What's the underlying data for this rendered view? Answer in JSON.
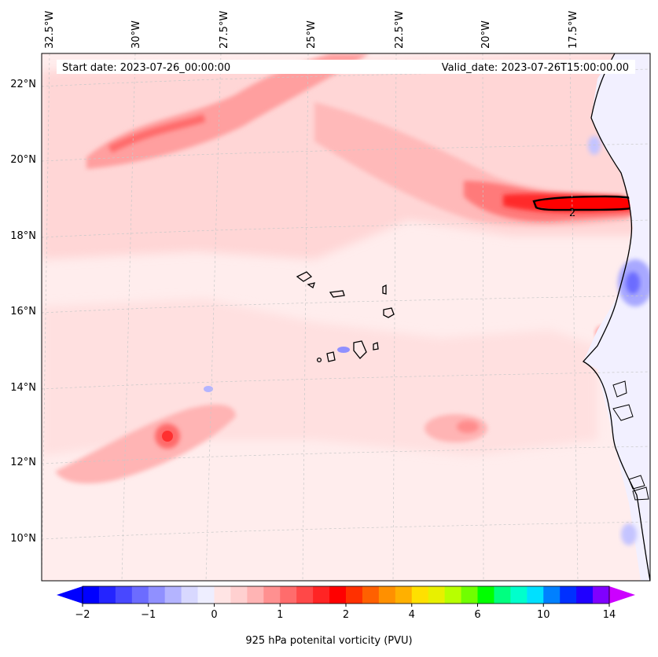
{
  "header": {
    "start_date": "Start date: 2023-07-26_00:00:00",
    "valid_date": "Valid_date: 2023-07-26T15:00:00.00"
  },
  "axes": {
    "lon_labels": [
      "32.5°W",
      "30°W",
      "27.5°W",
      "25°W",
      "22.5°W",
      "20°W",
      "17.5°W"
    ],
    "lat_labels": [
      "22°N",
      "20°N",
      "18°N",
      "16°N",
      "14°N",
      "12°N",
      "10°N"
    ]
  },
  "contour_label": "2",
  "colorbar": {
    "title": "925 hPa potenital vorticity (PVU)",
    "tick_labels": [
      "−2",
      "−1",
      "0",
      "1",
      "2",
      "4",
      "6",
      "10",
      "14"
    ],
    "colors": [
      "#0000ff",
      "#2424ff",
      "#4848ff",
      "#6c6cff",
      "#9090ff",
      "#b4b4ff",
      "#d8d8ff",
      "#eeeeff",
      "#ffe4e4",
      "#ffd0d0",
      "#ffb4b4",
      "#ff9090",
      "#ff6c6c",
      "#ff4848",
      "#ff2424",
      "#ff0000",
      "#ff3000",
      "#ff6000",
      "#ff9000",
      "#ffb000",
      "#ffe000",
      "#e8f000",
      "#b8ff00",
      "#70ff00",
      "#00ff00",
      "#00ff80",
      "#00ffcc",
      "#00e0ff",
      "#0080ff",
      "#0030ff",
      "#2000ff",
      "#8000ff"
    ],
    "under_color": "#0000ff",
    "over_color": "#cc00ff"
  },
  "legend_colors": {
    "background": "#fff0f0",
    "light_pink": "#ffd6d6",
    "pink": "#ffb2b2",
    "red": "#ff2a2a",
    "blue": "#dde0ff"
  }
}
